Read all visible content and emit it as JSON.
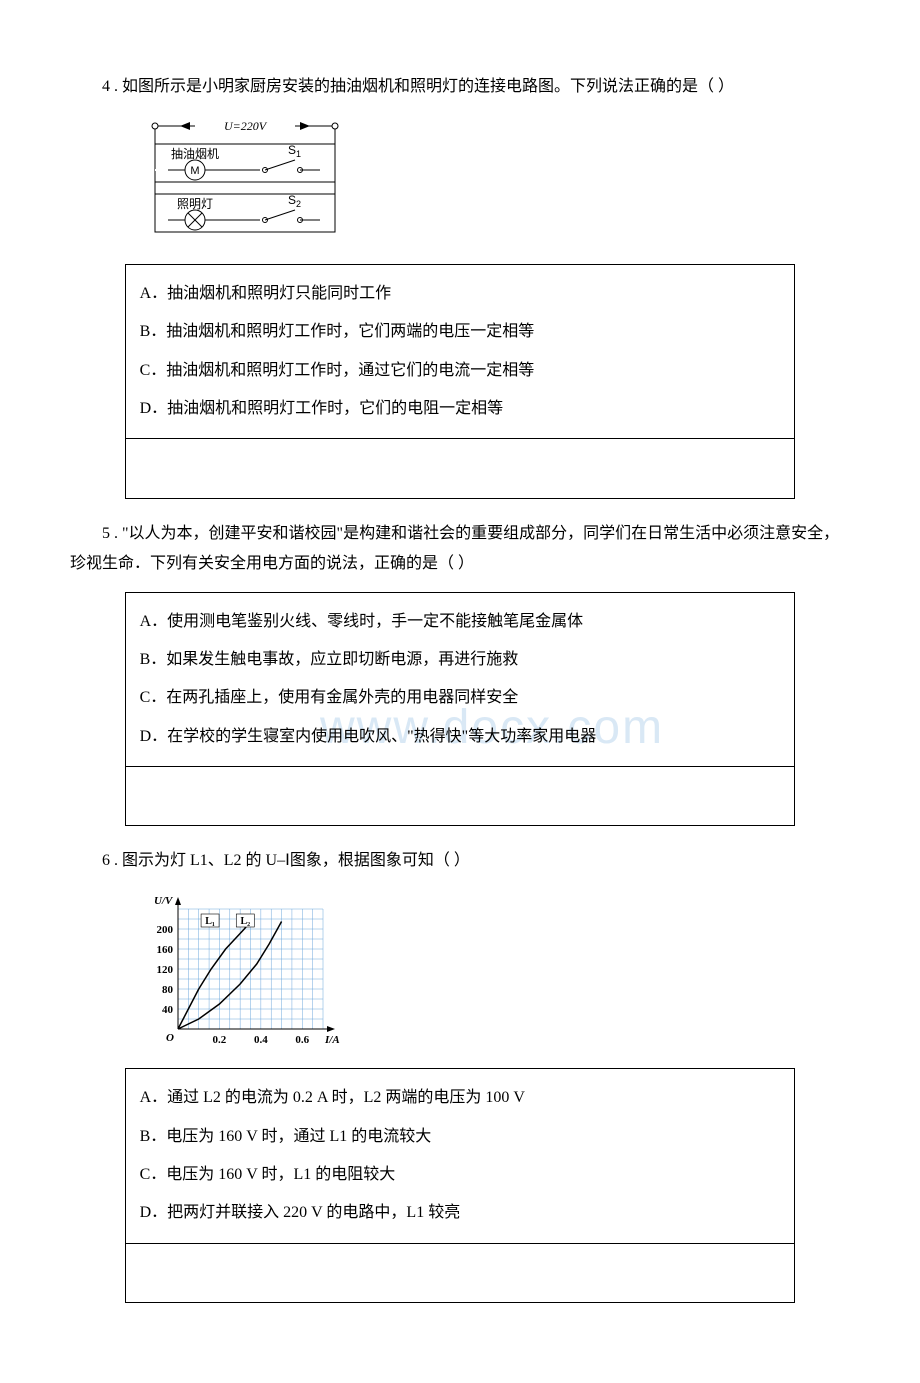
{
  "watermark": "www.docx.com",
  "q4": {
    "stem": "4 . 如图所示是小明家厨房安装的抽油烟机和照明灯的连接电路图。下列说法正确的是（ ）",
    "circuit": {
      "voltage_label": "U=220V",
      "branch1_label": "抽油烟机",
      "branch1_switch": "S",
      "branch1_switch_sub": "1",
      "branch2_label": "照明灯",
      "branch2_switch": "S",
      "branch2_switch_sub": "2",
      "motor_letter": "M",
      "stroke": "#000000",
      "fill": "#ffffff",
      "font_size": 12
    },
    "options": {
      "A": "A．抽油烟机和照明灯只能同时工作",
      "B": "B．抽油烟机和照明灯工作时，它们两端的电压一定相等",
      "C": "C．抽油烟机和照明灯工作时，通过它们的电流一定相等",
      "D": "D．抽油烟机和照明灯工作时，它们的电阻一定相等"
    }
  },
  "q5": {
    "stem": "5 . \"以人为本，创建平安和谐校园\"是构建和谐社会的重要组成部分，同学们在日常生活中必须注意安全，珍视生命．下列有关安全用电方面的说法，正确的是（ ）",
    "options": {
      "A": "A．使用测电笔鉴别火线、零线时，手一定不能接触笔尾金属体",
      "B": "B．如果发生触电事故，应立即切断电源，再进行施救",
      "C": "C．在两孔插座上，使用有金属外壳的用电器同样安全",
      "D": "D．在学校的学生寝室内使用电吹风、\"热得快\"等大功率家用电器"
    }
  },
  "q6": {
    "stem": "6 . 图示为灯 L1、L2 的 U–Ⅰ图象，根据图象可知（ ）",
    "chart": {
      "type": "line",
      "y_label": "U/V",
      "x_label": "I/A",
      "origin_label": "O",
      "y_ticks": [
        40,
        80,
        120,
        160,
        200
      ],
      "x_ticks": [
        0.2,
        0.4,
        0.6
      ],
      "xlim": [
        0,
        0.7
      ],
      "ylim": [
        0,
        240
      ],
      "grid_color": "#6fa8dc",
      "axis_color": "#000000",
      "series": [
        {
          "name": "L₁",
          "label_x": 0.15,
          "label_y": 210,
          "points": [
            [
              0,
              0
            ],
            [
              0.05,
              40
            ],
            [
              0.1,
              80
            ],
            [
              0.16,
              120
            ],
            [
              0.23,
              160
            ],
            [
              0.32,
              200
            ],
            [
              0.35,
              215
            ]
          ]
        },
        {
          "name": "L₂",
          "label_x": 0.32,
          "label_y": 210,
          "points": [
            [
              0,
              0
            ],
            [
              0.1,
              20
            ],
            [
              0.2,
              50
            ],
            [
              0.3,
              90
            ],
            [
              0.38,
              130
            ],
            [
              0.44,
              170
            ],
            [
              0.5,
              215
            ]
          ]
        }
      ],
      "line_color": "#000000",
      "line_width": 1.5,
      "font_size": 11
    },
    "options": {
      "A": "A．通过 L2 的电流为 0.2 A 时，L2 两端的电压为 100 V",
      "B": "B．电压为 160 V 时，通过 L1 的电流较大",
      "C": "C．电压为 160 V 时，L1 的电阻较大",
      "D": "D．把两灯并联接入 220 V 的电路中，L1 较亮"
    }
  }
}
